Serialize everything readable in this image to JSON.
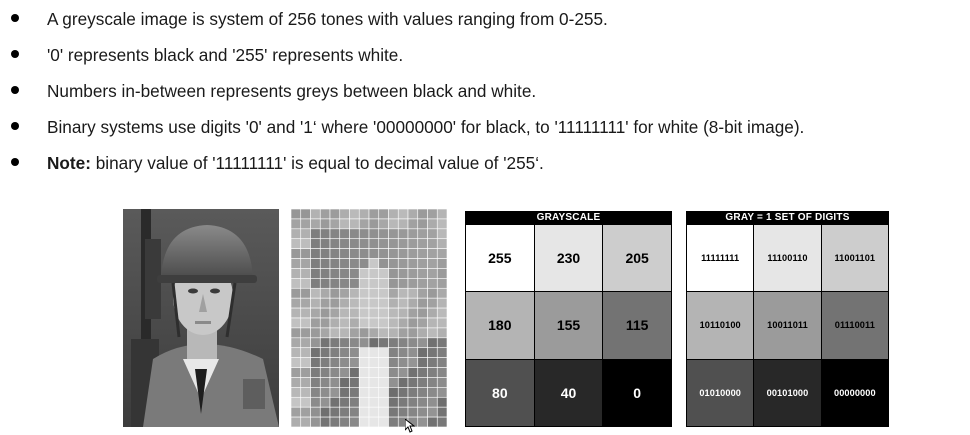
{
  "bullets": [
    {
      "strong": "",
      "text": "A greyscale image is system of 256 tones with values ranging from 0-255."
    },
    {
      "strong": "",
      "text": "'0' represents black and '255' represents white."
    },
    {
      "strong": "",
      "text": "Numbers in-between represents greys between black and white."
    },
    {
      "strong": "",
      "text": "Binary systems use digits '0' and '1‘ where '00000000' for black, to '11111111' for white (8-bit image)."
    },
    {
      "strong": "Note:",
      "text": " binary value of '11111111' is equal to decimal value of '255‘."
    }
  ],
  "grayscale_table": {
    "title": "GRAYSCALE",
    "cells": [
      {
        "value": "255",
        "bg": "#ffffff",
        "fg": "#000000"
      },
      {
        "value": "230",
        "bg": "#e6e6e6",
        "fg": "#000000"
      },
      {
        "value": "205",
        "bg": "#cdcdcd",
        "fg": "#000000"
      },
      {
        "value": "180",
        "bg": "#b4b4b4",
        "fg": "#000000"
      },
      {
        "value": "155",
        "bg": "#9b9b9b",
        "fg": "#000000"
      },
      {
        "value": "115",
        "bg": "#737373",
        "fg": "#000000"
      },
      {
        "value": "80",
        "bg": "#505050",
        "fg": "#ffffff"
      },
      {
        "value": "40",
        "bg": "#282828",
        "fg": "#ffffff"
      },
      {
        "value": "0",
        "bg": "#000000",
        "fg": "#ffffff"
      }
    ]
  },
  "binary_table": {
    "title": "GRAY = 1 SET OF DIGITS",
    "cells": [
      {
        "value": "11111111",
        "bg": "#ffffff",
        "fg": "#000000"
      },
      {
        "value": "11100110",
        "bg": "#e6e6e6",
        "fg": "#000000"
      },
      {
        "value": "11001101",
        "bg": "#cdcdcd",
        "fg": "#000000"
      },
      {
        "value": "10110100",
        "bg": "#b4b4b4",
        "fg": "#000000"
      },
      {
        "value": "10011011",
        "bg": "#9b9b9b",
        "fg": "#000000"
      },
      {
        "value": "01110011",
        "bg": "#737373",
        "fg": "#000000"
      },
      {
        "value": "01010000",
        "bg": "#505050",
        "fg": "#ffffff"
      },
      {
        "value": "00101000",
        "bg": "#282828",
        "fg": "#ffffff"
      },
      {
        "value": "00000000",
        "bg": "#000000",
        "fg": "#ffffff"
      }
    ]
  }
}
